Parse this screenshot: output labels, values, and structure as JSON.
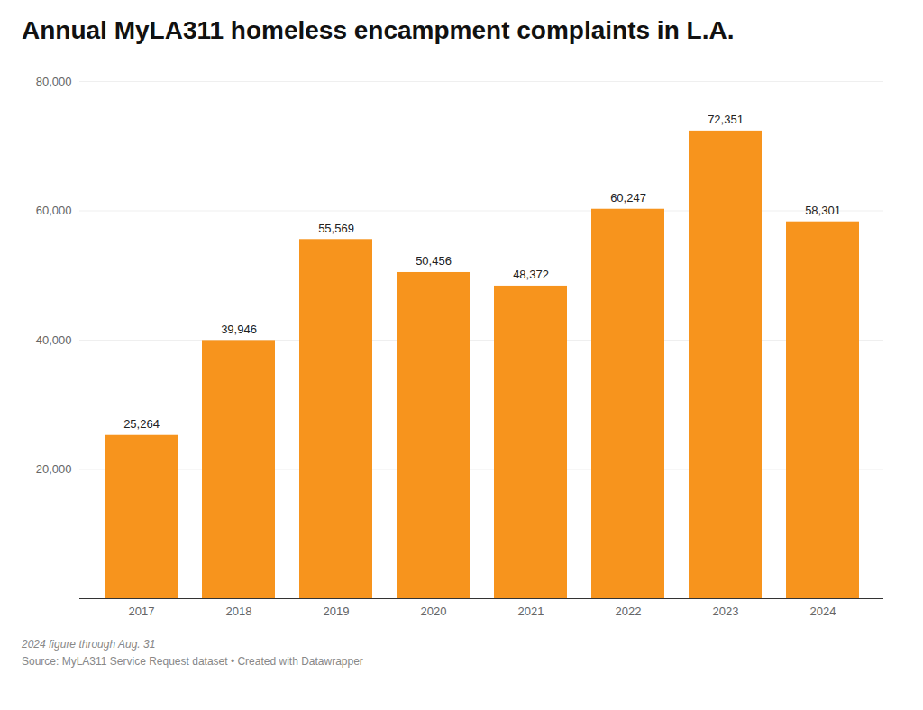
{
  "chart_data": {
    "type": "bar",
    "title": "Annual MyLA311 homeless encampment complaints in L.A.",
    "categories": [
      "2017",
      "2018",
      "2019",
      "2020",
      "2021",
      "2022",
      "2023",
      "2024"
    ],
    "values": [
      25264,
      39946,
      55569,
      50456,
      48372,
      60247,
      72351,
      58301
    ],
    "value_labels": [
      "25,264",
      "39,946",
      "55,569",
      "50,456",
      "48,372",
      "60,247",
      "72,351",
      "58,301"
    ],
    "data_labels": true,
    "color": "#F7941D",
    "ylim": [
      0,
      80000
    ],
    "yticks": [
      {
        "value": 20000,
        "label": "20,000"
      },
      {
        "value": 40000,
        "label": "40,000"
      },
      {
        "value": 60000,
        "label": "60,000"
      },
      {
        "value": 80000,
        "label": "80,000"
      }
    ],
    "grid": true,
    "annotations": [
      "2024 figure through Aug. 31",
      "Source: MyLA311 Service Request dataset • Created with Datawrapper"
    ]
  }
}
